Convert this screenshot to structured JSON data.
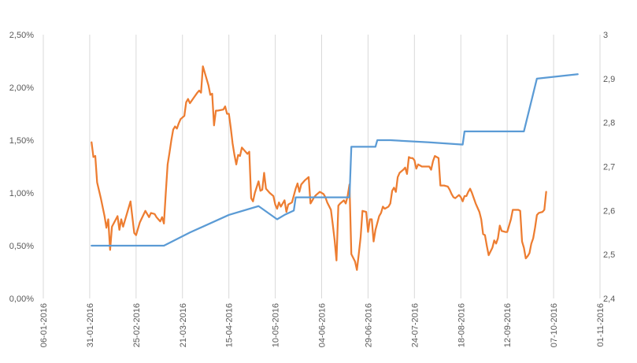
{
  "chart_data": {
    "type": "line",
    "title": "",
    "xlabel": "",
    "ylabel": "",
    "y2label": "",
    "grid": {
      "vertical": true,
      "horizontal": false
    },
    "legend": "none",
    "x_axis": {
      "type": "date",
      "range": [
        "06-01-2016",
        "01-11-2016"
      ],
      "tick_labels": [
        "06-01-2016",
        "31-01-2016",
        "25-02-2016",
        "21-03-2016",
        "15-04-2016",
        "10-05-2016",
        "04-06-2016",
        "29-06-2016",
        "24-07-2016",
        "18-08-2016",
        "12-09-2016",
        "07-10-2016",
        "01-11-2016"
      ]
    },
    "y_left": {
      "range": [
        0,
        0.025
      ],
      "tick_labels": [
        "0,00%",
        "0,50%",
        "1,00%",
        "1,50%",
        "2,00%",
        "2,50%"
      ]
    },
    "y_right": {
      "range": [
        2.4,
        3.0
      ],
      "tick_labels": [
        "2,4",
        "2,5",
        "2,6",
        "2,7",
        "2,8",
        "2,9",
        "3"
      ]
    },
    "series": [
      {
        "axis": "left",
        "color": "#ed7d31",
        "points": [
          [
            "01-02-2016",
            0.0148
          ],
          [
            "02-02-2016",
            0.0134
          ],
          [
            "03-02-2016",
            0.0135
          ],
          [
            "04-02-2016",
            0.011
          ],
          [
            "06-02-2016",
            0.0095
          ],
          [
            "08-02-2016",
            0.0078
          ],
          [
            "09-02-2016",
            0.0067
          ],
          [
            "10-02-2016",
            0.0075
          ],
          [
            "11-02-2016",
            0.0046
          ],
          [
            "12-02-2016",
            0.0068
          ],
          [
            "15-02-2016",
            0.0078
          ],
          [
            "16-02-2016",
            0.0065
          ],
          [
            "17-02-2016",
            0.0075
          ],
          [
            "18-02-2016",
            0.0068
          ],
          [
            "20-02-2016",
            0.008
          ],
          [
            "22-02-2016",
            0.0092
          ],
          [
            "24-02-2016",
            0.0062
          ],
          [
            "25-02-2016",
            0.006
          ],
          [
            "27-02-2016",
            0.0072
          ],
          [
            "01-03-2016",
            0.0083
          ],
          [
            "03-03-2016",
            0.0077
          ],
          [
            "04-03-2016",
            0.0081
          ],
          [
            "06-03-2016",
            0.008
          ],
          [
            "07-03-2016",
            0.0077
          ],
          [
            "08-03-2016",
            0.0075
          ],
          [
            "09-03-2016",
            0.0073
          ],
          [
            "10-03-2016",
            0.0077
          ],
          [
            "11-03-2016",
            0.0071
          ],
          [
            "12-03-2016",
            0.01
          ],
          [
            "13-03-2016",
            0.0127
          ],
          [
            "14-03-2016",
            0.0138
          ],
          [
            "15-03-2016",
            0.015
          ],
          [
            "16-03-2016",
            0.016
          ],
          [
            "17-03-2016",
            0.0163
          ],
          [
            "18-03-2016",
            0.0161
          ],
          [
            "19-03-2016",
            0.0166
          ],
          [
            "20-03-2016",
            0.017
          ],
          [
            "22-03-2016",
            0.0173
          ],
          [
            "23-03-2016",
            0.0186
          ],
          [
            "24-03-2016",
            0.0189
          ],
          [
            "25-03-2016",
            0.0185
          ],
          [
            "27-03-2016",
            0.019
          ],
          [
            "29-03-2016",
            0.0195
          ],
          [
            "30-03-2016",
            0.0197
          ],
          [
            "31-03-2016",
            0.0195
          ],
          [
            "01-04-2016",
            0.022
          ],
          [
            "02-04-2016",
            0.0214
          ],
          [
            "04-04-2016",
            0.0202
          ],
          [
            "05-04-2016",
            0.0193
          ],
          [
            "06-04-2016",
            0.0194
          ],
          [
            "07-04-2016",
            0.0164
          ],
          [
            "08-04-2016",
            0.0178
          ],
          [
            "09-04-2016",
            0.0178
          ],
          [
            "12-04-2016",
            0.0179
          ],
          [
            "13-04-2016",
            0.0182
          ],
          [
            "14-04-2016",
            0.0175
          ],
          [
            "15-04-2016",
            0.0175
          ],
          [
            "16-04-2016",
            0.0162
          ],
          [
            "17-04-2016",
            0.0147
          ],
          [
            "18-04-2016",
            0.0136
          ],
          [
            "19-04-2016",
            0.0127
          ],
          [
            "20-04-2016",
            0.0136
          ],
          [
            "21-04-2016",
            0.0135
          ],
          [
            "22-04-2016",
            0.0143
          ],
          [
            "23-04-2016",
            0.0141
          ],
          [
            "25-04-2016",
            0.0137
          ],
          [
            "26-04-2016",
            0.0139
          ],
          [
            "27-04-2016",
            0.0095
          ],
          [
            "28-04-2016",
            0.0092
          ],
          [
            "29-04-2016",
            0.01
          ],
          [
            "01-05-2016",
            0.0111
          ],
          [
            "02-05-2016",
            0.0102
          ],
          [
            "03-05-2016",
            0.0103
          ],
          [
            "04-05-2016",
            0.0119
          ],
          [
            "05-05-2016",
            0.0104
          ],
          [
            "07-05-2016",
            0.01
          ],
          [
            "09-05-2016",
            0.0097
          ],
          [
            "10-05-2016",
            0.0089
          ],
          [
            "11-05-2016",
            0.0085
          ],
          [
            "12-05-2016",
            0.0091
          ],
          [
            "13-05-2016",
            0.0087
          ],
          [
            "14-05-2016",
            0.009
          ],
          [
            "15-05-2016",
            0.0093
          ],
          [
            "16-05-2016",
            0.0082
          ],
          [
            "17-05-2016",
            0.0089
          ],
          [
            "19-05-2016",
            0.0091
          ],
          [
            "21-05-2016",
            0.0104
          ],
          [
            "22-05-2016",
            0.0109
          ],
          [
            "23-05-2016",
            0.0101
          ],
          [
            "24-05-2016",
            0.0108
          ],
          [
            "26-05-2016",
            0.0112
          ],
          [
            "28-05-2016",
            0.0115
          ],
          [
            "29-05-2016",
            0.009
          ],
          [
            "30-05-2016",
            0.0093
          ],
          [
            "31-05-2016",
            0.0096
          ],
          [
            "01-06-2016",
            0.0098
          ],
          [
            "03-06-2016",
            0.0101
          ],
          [
            "05-06-2016",
            0.0099
          ],
          [
            "06-06-2016",
            0.0096
          ],
          [
            "07-06-2016",
            0.0091
          ],
          [
            "09-06-2016",
            0.0084
          ],
          [
            "10-06-2016",
            0.007
          ],
          [
            "11-06-2016",
            0.0055
          ],
          [
            "12-06-2016",
            0.0036
          ],
          [
            "13-06-2016",
            0.0088
          ],
          [
            "14-06-2016",
            0.009
          ],
          [
            "16-06-2016",
            0.0093
          ],
          [
            "17-06-2016",
            0.009
          ],
          [
            "18-06-2016",
            0.0097
          ],
          [
            "19-06-2016",
            0.0108
          ],
          [
            "20-06-2016",
            0.0042
          ],
          [
            "22-06-2016",
            0.0035
          ],
          [
            "23-06-2016",
            0.0027
          ],
          [
            "24-06-2016",
            0.0042
          ],
          [
            "25-06-2016",
            0.0058
          ],
          [
            "26-06-2016",
            0.0083
          ],
          [
            "28-06-2016",
            0.0082
          ],
          [
            "29-06-2016",
            0.0063
          ],
          [
            "30-06-2016",
            0.0075
          ],
          [
            "01-07-2016",
            0.0075
          ],
          [
            "02-07-2016",
            0.0054
          ],
          [
            "03-07-2016",
            0.0065
          ],
          [
            "05-07-2016",
            0.0078
          ],
          [
            "06-07-2016",
            0.0081
          ],
          [
            "07-07-2016",
            0.0087
          ],
          [
            "08-07-2016",
            0.0085
          ],
          [
            "10-07-2016",
            0.0087
          ],
          [
            "11-07-2016",
            0.009
          ],
          [
            "12-07-2016",
            0.0102
          ],
          [
            "13-07-2016",
            0.0105
          ],
          [
            "14-07-2016",
            0.0101
          ],
          [
            "15-07-2016",
            0.0115
          ],
          [
            "16-07-2016",
            0.0119
          ],
          [
            "18-07-2016",
            0.0122
          ],
          [
            "19-07-2016",
            0.0124
          ],
          [
            "20-07-2016",
            0.0118
          ],
          [
            "21-07-2016",
            0.0134
          ],
          [
            "22-07-2016",
            0.0133
          ],
          [
            "23-07-2016",
            0.0133
          ],
          [
            "24-07-2016",
            0.0131
          ],
          [
            "25-07-2016",
            0.0123
          ],
          [
            "26-07-2016",
            0.0127
          ],
          [
            "27-07-2016",
            0.0126
          ],
          [
            "28-07-2016",
            0.0125
          ],
          [
            "30-07-2016",
            0.0125
          ],
          [
            "01-08-2016",
            0.0125
          ],
          [
            "02-08-2016",
            0.0122
          ],
          [
            "03-08-2016",
            0.013
          ],
          [
            "04-08-2016",
            0.0135
          ],
          [
            "06-08-2016",
            0.0133
          ],
          [
            "07-08-2016",
            0.0107
          ],
          [
            "09-08-2016",
            0.0107
          ],
          [
            "11-08-2016",
            0.0106
          ],
          [
            "12-08-2016",
            0.0103
          ],
          [
            "13-08-2016",
            0.0099
          ],
          [
            "14-08-2016",
            0.0096
          ],
          [
            "15-08-2016",
            0.0095
          ],
          [
            "17-08-2016",
            0.0098
          ],
          [
            "18-08-2016",
            0.0096
          ],
          [
            "19-08-2016",
            0.0092
          ],
          [
            "20-08-2016",
            0.0097
          ],
          [
            "21-08-2016",
            0.0097
          ],
          [
            "22-08-2016",
            0.0101
          ],
          [
            "23-08-2016",
            0.0104
          ],
          [
            "24-08-2016",
            0.01
          ],
          [
            "25-08-2016",
            0.0095
          ],
          [
            "26-08-2016",
            0.009
          ],
          [
            "28-08-2016",
            0.0082
          ],
          [
            "29-08-2016",
            0.0075
          ],
          [
            "30-08-2016",
            0.0061
          ],
          [
            "31-08-2016",
            0.006
          ],
          [
            "01-09-2016",
            0.005
          ],
          [
            "02-09-2016",
            0.0041
          ],
          [
            "04-09-2016",
            0.0048
          ],
          [
            "05-09-2016",
            0.0055
          ],
          [
            "06-09-2016",
            0.0052
          ],
          [
            "07-09-2016",
            0.0057
          ],
          [
            "08-09-2016",
            0.0069
          ],
          [
            "09-09-2016",
            0.0064
          ],
          [
            "11-09-2016",
            0.0063
          ],
          [
            "12-09-2016",
            0.0063
          ],
          [
            "14-09-2016",
            0.0075
          ],
          [
            "15-09-2016",
            0.0084
          ],
          [
            "18-09-2016",
            0.0084
          ],
          [
            "19-09-2016",
            0.0083
          ],
          [
            "20-09-2016",
            0.0054
          ],
          [
            "21-09-2016",
            0.0048
          ],
          [
            "22-09-2016",
            0.0038
          ],
          [
            "23-09-2016",
            0.004
          ],
          [
            "24-09-2016",
            0.0043
          ],
          [
            "25-09-2016",
            0.0052
          ],
          [
            "26-09-2016",
            0.0057
          ],
          [
            "27-09-2016",
            0.0067
          ],
          [
            "28-09-2016",
            0.0079
          ],
          [
            "29-09-2016",
            0.0081
          ],
          [
            "01-10-2016",
            0.0082
          ],
          [
            "02-10-2016",
            0.0084
          ],
          [
            "03-10-2016",
            0.0101
          ]
        ]
      },
      {
        "axis": "right",
        "color": "#5b9bd5",
        "points": [
          [
            "01-02-2016",
            2.52
          ],
          [
            "11-03-2016",
            2.52
          ],
          [
            "25-03-2016",
            2.55
          ],
          [
            "15-04-2016",
            2.59
          ],
          [
            "01-05-2016",
            2.61
          ],
          [
            "11-05-2016",
            2.58
          ],
          [
            "15-05-2016",
            2.59
          ],
          [
            "20-05-2016",
            2.6
          ],
          [
            "21-05-2016",
            2.63
          ],
          [
            "19-06-2016",
            2.63
          ],
          [
            "20-06-2016",
            2.745
          ],
          [
            "03-07-2016",
            2.745
          ],
          [
            "04-07-2016",
            2.76
          ],
          [
            "11-07-2016",
            2.76
          ],
          [
            "01-08-2016",
            2.755
          ],
          [
            "19-08-2016",
            2.75
          ],
          [
            "20-08-2016",
            2.78
          ],
          [
            "21-09-2016",
            2.78
          ],
          [
            "28-09-2016",
            2.9
          ],
          [
            "20-10-2016",
            2.91
          ]
        ]
      }
    ]
  }
}
